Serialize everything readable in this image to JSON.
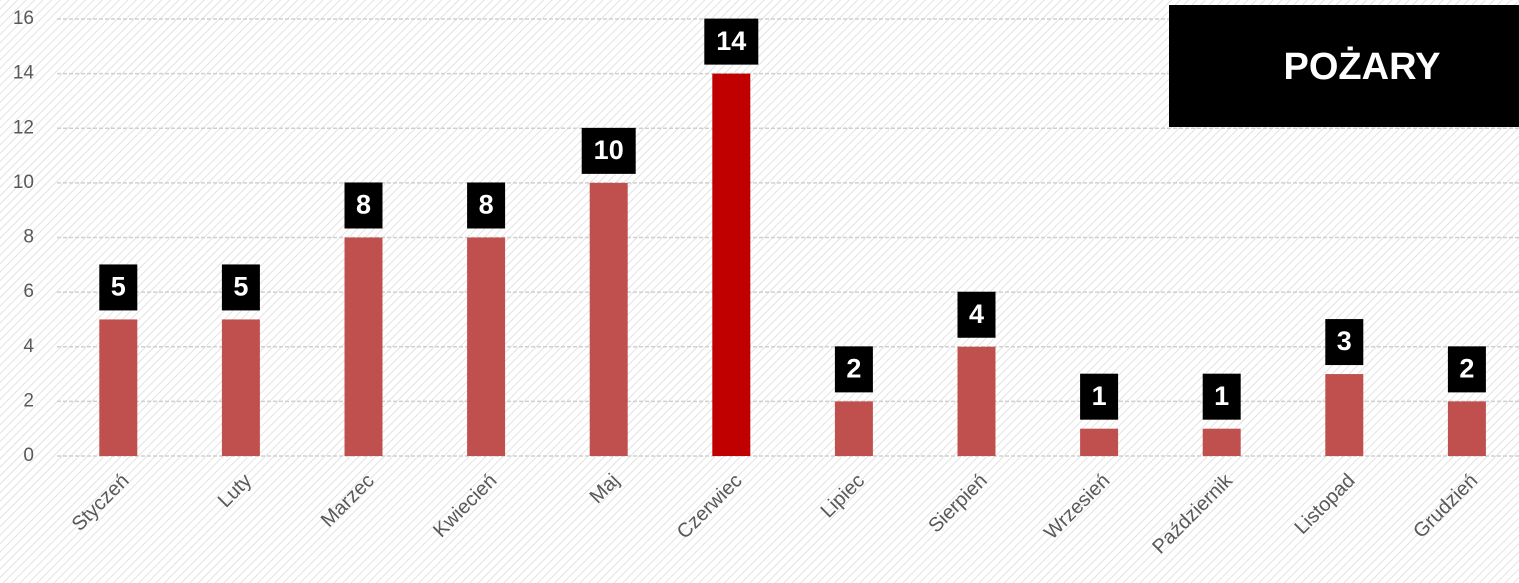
{
  "chart_data": {
    "type": "bar",
    "title": "POŻARY",
    "categories": [
      "Styczeń",
      "Luty",
      "Marzec",
      "Kwiecień",
      "Maj",
      "Czerwiec",
      "Lipiec",
      "Sierpień",
      "Wrzesień",
      "Październik",
      "Listopad",
      "Grudzień"
    ],
    "values": [
      5,
      5,
      8,
      8,
      10,
      14,
      2,
      4,
      1,
      1,
      3,
      2
    ],
    "colors": [
      "#c0504d",
      "#c0504d",
      "#c0504d",
      "#c0504d",
      "#c0504d",
      "#c00000",
      "#c0504d",
      "#c0504d",
      "#c0504d",
      "#c0504d",
      "#c0504d",
      "#c0504d"
    ],
    "ylim": [
      0,
      16
    ],
    "yticks": [
      0,
      2,
      4,
      6,
      8,
      10,
      12,
      14,
      16
    ],
    "grid": true
  }
}
